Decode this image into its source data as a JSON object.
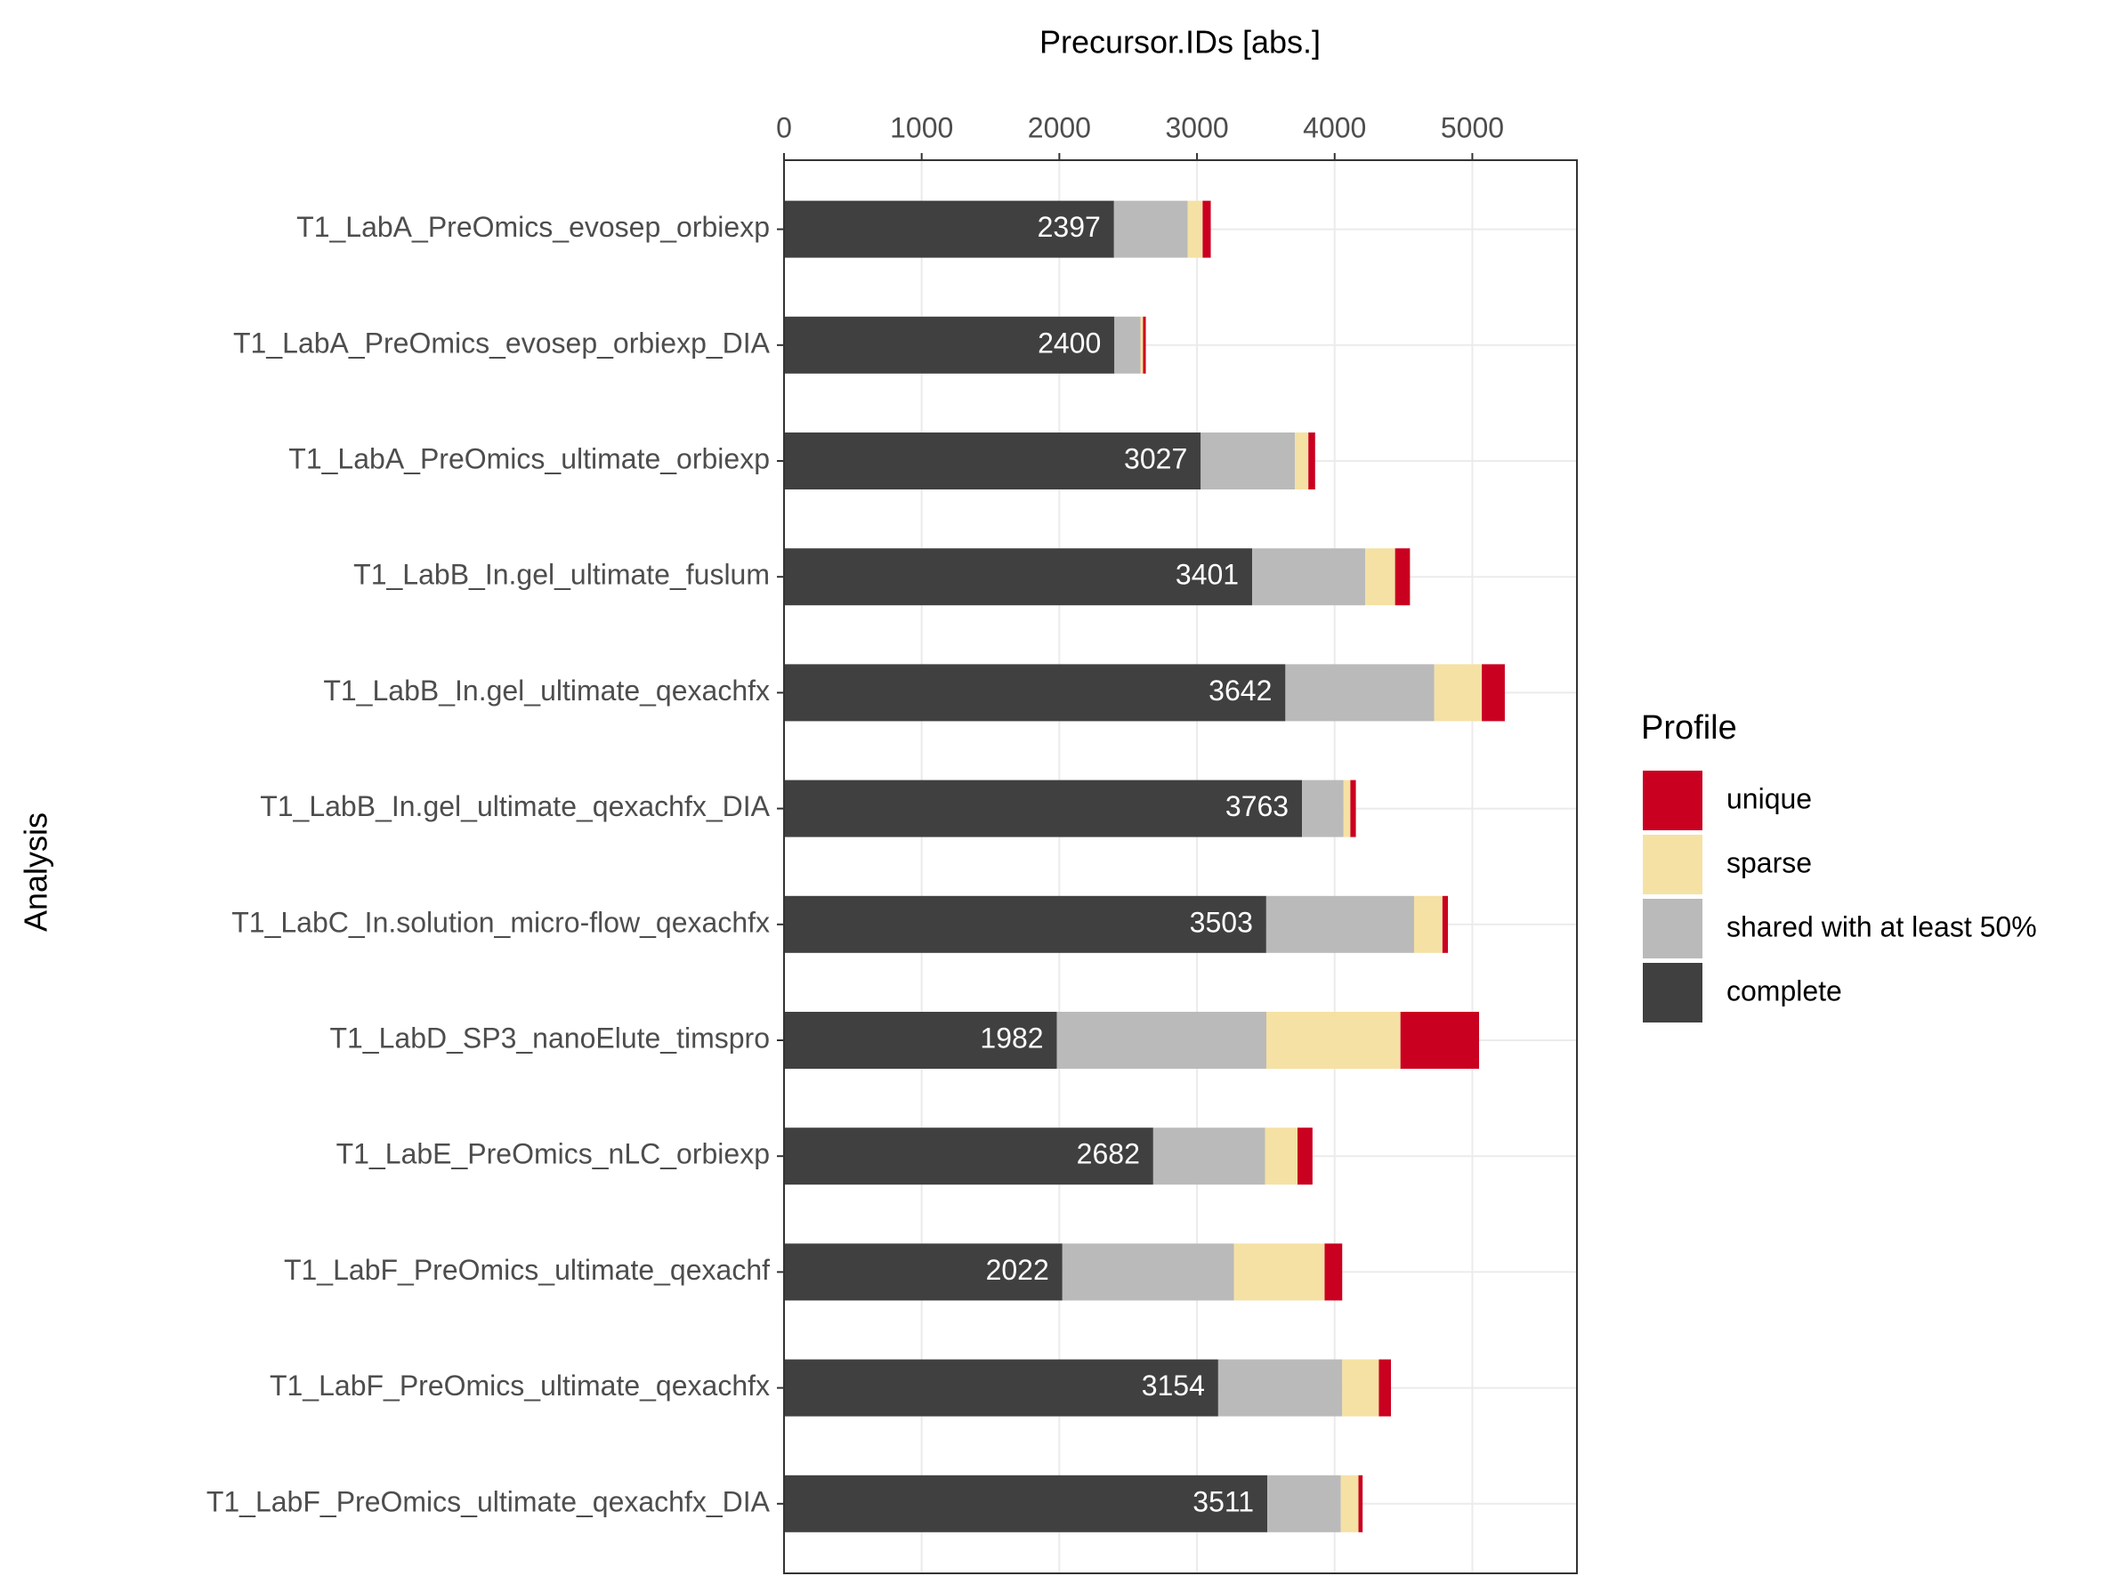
{
  "chart_data": {
    "type": "stacked-bar-horizontal",
    "x_label": "Precursor.IDs [abs.]",
    "y_label": "Analysis",
    "categories": [
      "T1_LabA_PreOmics_evosep_orbiexp",
      "T1_LabA_PreOmics_evosep_orbiexp_DIA",
      "T1_LabA_PreOmics_ultimate_orbiexp",
      "T1_LabB_In.gel_ultimate_fuslum",
      "T1_LabB_In.gel_ultimate_qexachfx",
      "T1_LabB_In.gel_ultimate_qexachfx_DIA",
      "T1_LabC_In.solution_micro-flow_qexachfx",
      "T1_LabD_SP3_nanoElute_timspro",
      "T1_LabE_PreOmics_nLC_orbiexp",
      "T1_LabF_PreOmics_ultimate_qexachf",
      "T1_LabF_PreOmics_ultimate_qexachfx",
      "T1_LabF_PreOmics_ultimate_qexachfx_DIA"
    ],
    "series": [
      {
        "name": "complete",
        "color": "#404040",
        "values": [
          2397,
          2400,
          3027,
          3401,
          3642,
          3763,
          3503,
          1982,
          2682,
          2022,
          3154,
          3511
        ],
        "labeled": true
      },
      {
        "name": "shared with at least 50%",
        "color": "#bababa",
        "values": [
          536,
          189,
          684,
          821,
          1082,
          302,
          1074,
          1522,
          812,
          1246,
          901,
          534
        ]
      },
      {
        "name": "sparse",
        "color": "#f5e1a4",
        "values": [
          108,
          19,
          98,
          217,
          345,
          49,
          206,
          974,
          236,
          659,
          266,
          128
        ]
      },
      {
        "name": "unique",
        "color": "#ca0020",
        "values": [
          59,
          20,
          49,
          108,
          167,
          40,
          40,
          571,
          109,
          128,
          88,
          30
        ]
      }
    ],
    "legend_title": "Profile",
    "legend_position": "right",
    "xlim": [
      0,
      5760
    ],
    "xticks": [
      0,
      1000,
      2000,
      3000,
      4000,
      5000
    ],
    "grid": true
  }
}
